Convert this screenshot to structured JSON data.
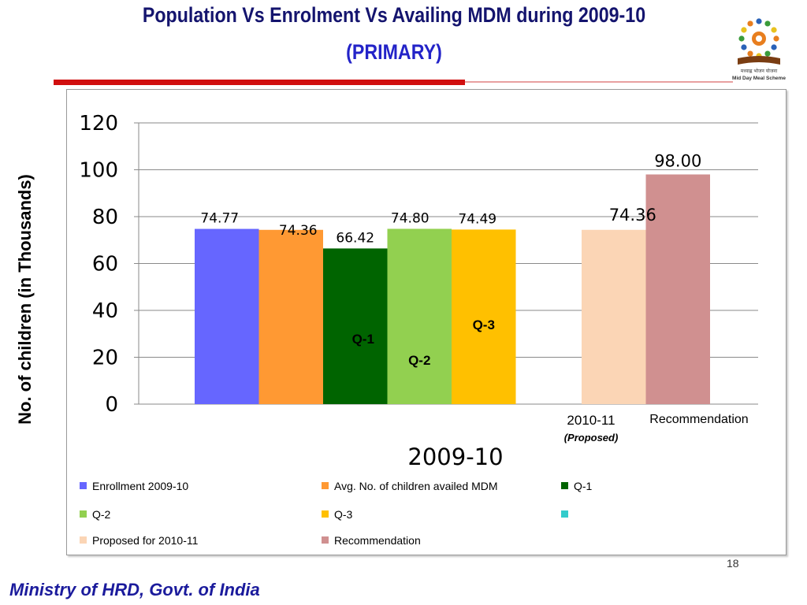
{
  "slide": {
    "title": "Population Vs Enrolment Vs Availing MDM during  2009-10",
    "subtitle": "(PRIMARY)",
    "page_number": "18",
    "footer": "Ministry of HRD, Govt. of India",
    "logo_text": "मध्याह्न भोजन योजना",
    "logo_text_en": "Mid Day Meal Scheme"
  },
  "colors": {
    "title": "#14146e",
    "subtitle": "#2323c8",
    "rule": "#d10f0f",
    "footer": "#1b1b9c"
  },
  "chart_data": {
    "type": "bar",
    "ylabel": "No. of children (in Thousands)",
    "ylim": [
      0,
      120
    ],
    "yticks": [
      0,
      20,
      40,
      60,
      80,
      100,
      120
    ],
    "grid": true,
    "categories": [
      {
        "label": "2009-10",
        "sublabel": ""
      },
      {
        "label": "2010-11",
        "sublabel": "(Proposed)"
      }
    ],
    "bars": [
      {
        "series": "Enrollment 2009-10",
        "group": 0,
        "value": 74.77,
        "label": "74.77",
        "inner_label": ""
      },
      {
        "series": "Avg. No. of children availed MDM",
        "group": 0,
        "value": 74.36,
        "label": "74.36",
        "inner_label": ""
      },
      {
        "series": "Q-1",
        "group": 0,
        "value": 66.42,
        "label": "66.42",
        "inner_label": "Q-1"
      },
      {
        "series": "Q-2",
        "group": 0,
        "value": 74.8,
        "label": "74.80",
        "inner_label": "Q-2"
      },
      {
        "series": "Q-3",
        "group": 0,
        "value": 74.49,
        "label": "74.49",
        "inner_label": "Q-3"
      },
      {
        "series": "Proposed for 2010-11",
        "group": 1,
        "value": 74.36,
        "label": "74.36",
        "inner_label": ""
      },
      {
        "series": "Recommendation",
        "group": 1,
        "value": 98.0,
        "label": "98.00",
        "inner_label": "",
        "category_text": "Recommendation"
      }
    ],
    "legend": {
      "placement": "bottom",
      "entries": [
        {
          "name": "Enrollment 2009-10",
          "color": "#6666ff"
        },
        {
          "name": "Avg. No. of children availed MDM",
          "color": "#ff9933"
        },
        {
          "name": "Q-1",
          "color": "#006400"
        },
        {
          "name": "Q-2",
          "color": "#92d050"
        },
        {
          "name": "Q-3",
          "color": "#ffc000"
        },
        {
          "name": "",
          "color": "#33cccc"
        },
        {
          "name": "Proposed for 2010-11",
          "color": "#fbd5b5"
        },
        {
          "name": "Recommendation",
          "color": "#d09090"
        }
      ]
    }
  }
}
